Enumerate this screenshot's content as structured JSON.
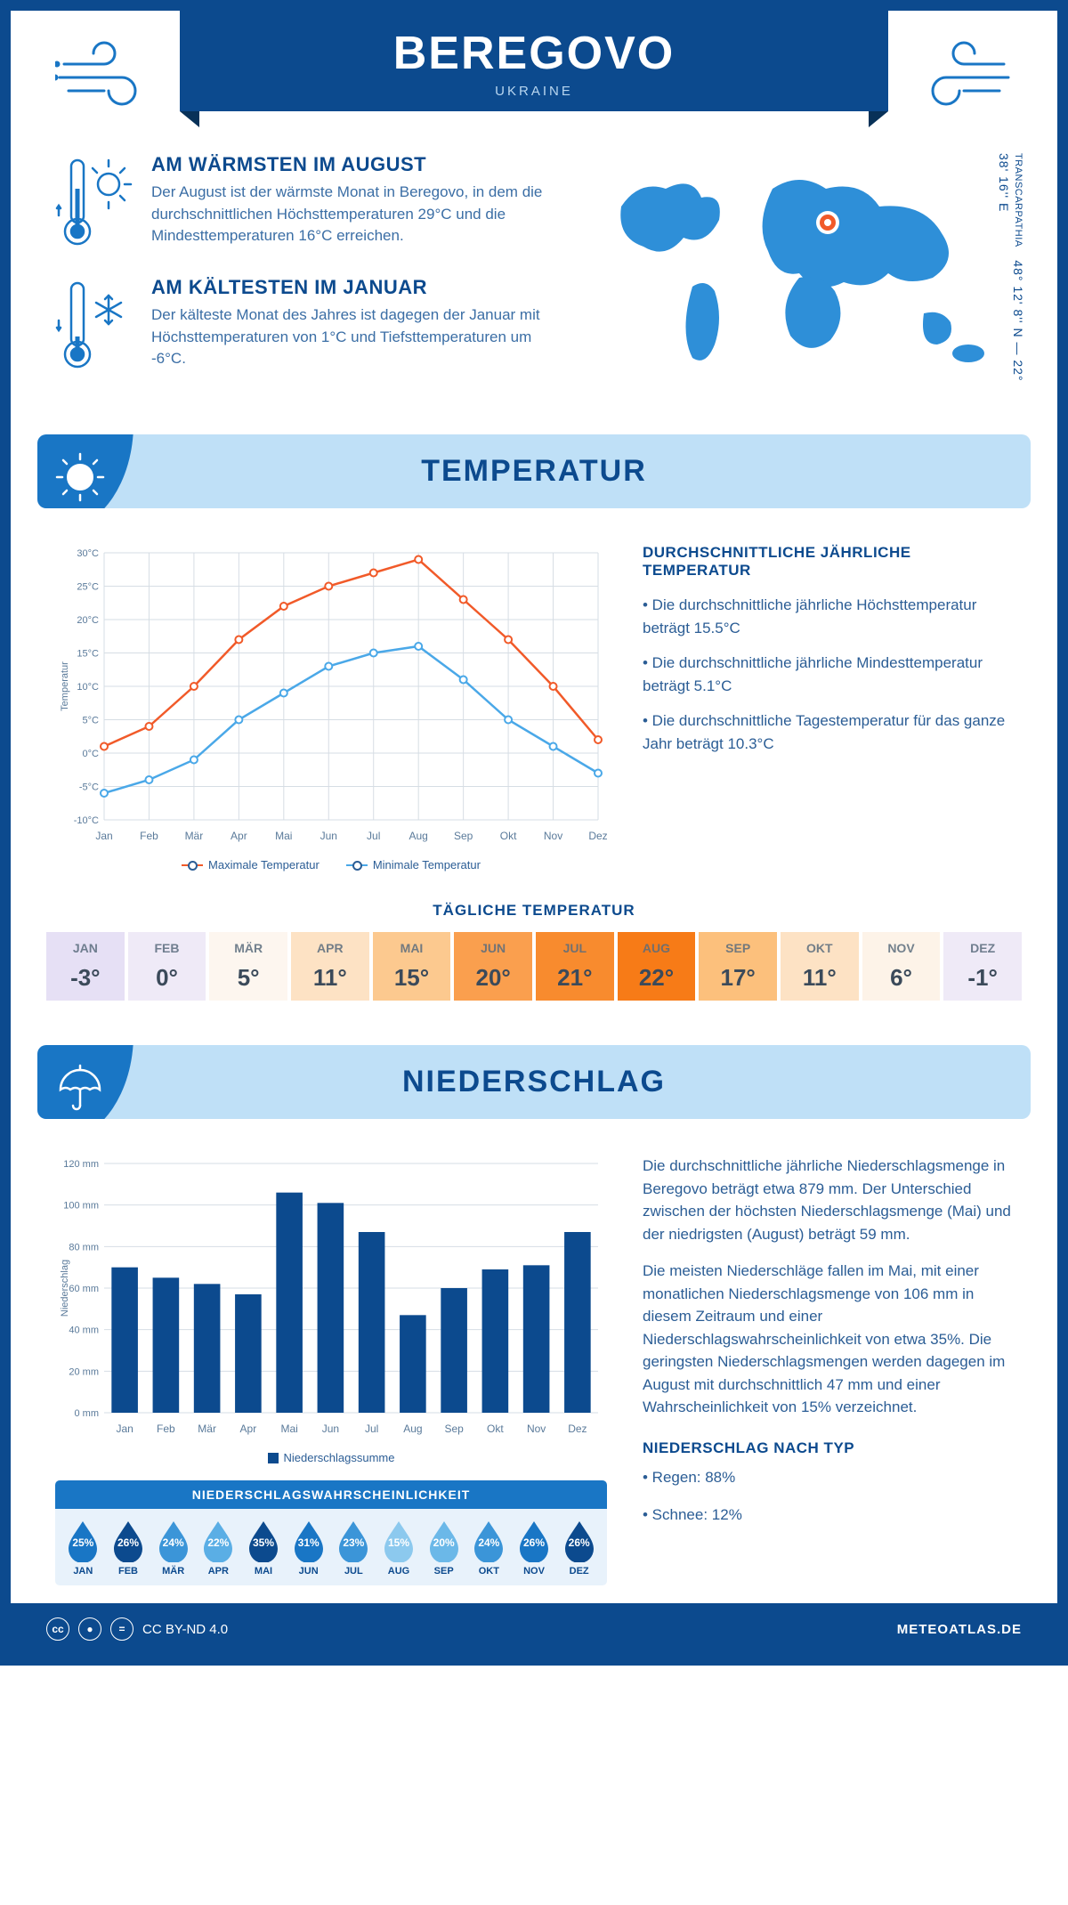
{
  "header": {
    "city": "BEREGOVO",
    "country": "UKRAINE"
  },
  "coord": "48° 12' 8'' N — 22° 38' 16'' E",
  "region_label": "TRANSCARPATHIA",
  "intro": {
    "warm": {
      "title": "AM WÄRMSTEN IM AUGUST",
      "text": "Der August ist der wärmste Monat in Beregovo, in dem die durchschnittlichen Höchsttemperaturen 29°C und die Mindesttemperaturen 16°C erreichen."
    },
    "cold": {
      "title": "AM KÄLTESTEN IM JANUAR",
      "text": "Der kälteste Monat des Jahres ist dagegen der Januar mit Höchsttemperaturen von 1°C und Tiefsttemperaturen um -6°C."
    }
  },
  "sections": {
    "temp_title": "TEMPERATUR",
    "precip_title": "NIEDERSCHLAG"
  },
  "temp_chart": {
    "type": "line",
    "months": [
      "Jan",
      "Feb",
      "Mär",
      "Apr",
      "Mai",
      "Jun",
      "Jul",
      "Aug",
      "Sep",
      "Okt",
      "Nov",
      "Dez"
    ],
    "max_series": [
      1,
      4,
      10,
      17,
      22,
      25,
      27,
      29,
      23,
      17,
      10,
      2
    ],
    "min_series": [
      -6,
      -4,
      -1,
      5,
      9,
      13,
      15,
      16,
      11,
      5,
      1,
      -3
    ],
    "max_color": "#f15a29",
    "min_color": "#4aa8e8",
    "ylim": [
      -10,
      30
    ],
    "ytick_step": 5,
    "ylabel": "Temperatur",
    "grid_color": "#d6dde4",
    "legend_max": "Maximale Temperatur",
    "legend_min": "Minimale Temperatur"
  },
  "temp_summary": {
    "title": "DURCHSCHNITTLICHE JÄHRLICHE TEMPERATUR",
    "b1": "• Die durchschnittliche jährliche Höchsttemperatur beträgt 15.5°C",
    "b2": "• Die durchschnittliche jährliche Mindesttemperatur beträgt 5.1°C",
    "b3": "• Die durchschnittliche Tagestemperatur für das ganze Jahr beträgt 10.3°C"
  },
  "daily": {
    "title": "TÄGLICHE TEMPERATUR",
    "months": [
      "JAN",
      "FEB",
      "MÄR",
      "APR",
      "MAI",
      "JUN",
      "JUL",
      "AUG",
      "SEP",
      "OKT",
      "NOV",
      "DEZ"
    ],
    "values": [
      "-3°",
      "0°",
      "5°",
      "11°",
      "15°",
      "20°",
      "21°",
      "22°",
      "17°",
      "11°",
      "6°",
      "-1°"
    ],
    "colors": [
      "#e6e0f5",
      "#efeaf7",
      "#fdf6ef",
      "#fde2c4",
      "#fcc98f",
      "#fa9f4e",
      "#f88b2e",
      "#f77b17",
      "#fcc07c",
      "#fde2c4",
      "#fdf3e8",
      "#efeaf7"
    ]
  },
  "precip_chart": {
    "type": "bar",
    "months": [
      "Jan",
      "Feb",
      "Mär",
      "Apr",
      "Mai",
      "Jun",
      "Jul",
      "Aug",
      "Sep",
      "Okt",
      "Nov",
      "Dez"
    ],
    "values": [
      70,
      65,
      62,
      57,
      106,
      101,
      87,
      47,
      60,
      69,
      71,
      87
    ],
    "bar_color": "#0c4a8e",
    "ylim": [
      0,
      120
    ],
    "ytick_step": 20,
    "ylabel": "Niederschlag",
    "legend": "Niederschlagssumme",
    "grid_color": "#d6dde4"
  },
  "precip_text": {
    "p1": "Die durchschnittliche jährliche Niederschlagsmenge in Beregovo beträgt etwa 879 mm. Der Unterschied zwischen der höchsten Niederschlagsmenge (Mai) und der niedrigsten (August) beträgt 59 mm.",
    "p2": "Die meisten Niederschläge fallen im Mai, mit einer monatlichen Niederschlagsmenge von 106 mm in diesem Zeitraum und einer Niederschlagswahrscheinlichkeit von etwa 35%. Die geringsten Niederschlagsmengen werden dagegen im August mit durchschnittlich 47 mm und einer Wahrscheinlichkeit von 15% verzeichnet.",
    "type_title": "NIEDERSCHLAG NACH TYP",
    "rain": "• Regen: 88%",
    "snow": "• Schnee: 12%"
  },
  "probability": {
    "title": "NIEDERSCHLAGSWAHRSCHEINLICHKEIT",
    "months": [
      "JAN",
      "FEB",
      "MÄR",
      "APR",
      "MAI",
      "JUN",
      "JUL",
      "AUG",
      "SEP",
      "OKT",
      "NOV",
      "DEZ"
    ],
    "values": [
      "25%",
      "26%",
      "24%",
      "22%",
      "35%",
      "31%",
      "23%",
      "15%",
      "20%",
      "24%",
      "26%",
      "26%"
    ],
    "colors": [
      "#1976c5",
      "#0c4a8e",
      "#3b95d8",
      "#5aaee5",
      "#0c4a8e",
      "#1976c5",
      "#3b95d8",
      "#8cc9ee",
      "#6bb8e8",
      "#3b95d8",
      "#1976c5",
      "#0c4a8e"
    ]
  },
  "footer": {
    "license": "CC BY-ND 4.0",
    "site": "METEOATLAS.DE"
  }
}
